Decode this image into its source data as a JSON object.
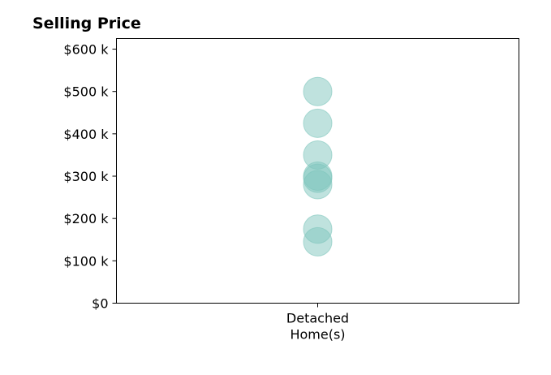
{
  "chart_data": {
    "type": "scatter",
    "title": "Selling Price",
    "xlabel": "",
    "ylabel": "",
    "categories": [
      "Detached\nHome(s)"
    ],
    "y_tick_labels": [
      "$0",
      "$100 k",
      "$200 k",
      "$300 k",
      "$400 k",
      "$500 k",
      "$600 k"
    ],
    "y_tick_values": [
      0,
      100000,
      200000,
      300000,
      400000,
      500000,
      600000
    ],
    "ylim": [
      0,
      625000
    ],
    "grid": false,
    "marker_color": "#7fc6bd",
    "series": [
      {
        "category": "Detached\nHome(s)",
        "values": [
          500000,
          425000,
          350000,
          300000,
          295000,
          280000,
          175000,
          145000
        ]
      }
    ]
  }
}
